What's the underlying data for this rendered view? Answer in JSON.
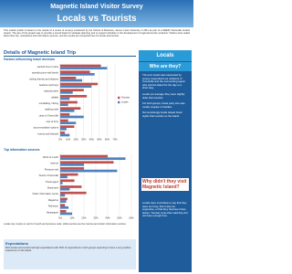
{
  "header": {
    "title": "Magnetic Island Visitor Survey",
    "subtitle": "Locals vs Tourists"
  },
  "intro": "This market profile is based on the results of a series of surveys conducted by the School of Business, James Cook University in 2011 as part of a DEEDI Townsville funded project. The aim of the project was to provide a sound basis for strategic planning and to support activities in the development of regional tourism products. Visitors were asked about their trip, motivations and information sources, and the results are compared here for locals and tourists.",
  "section": "Details of Magnetic Island Trip",
  "charts": [
    {
      "type": "bar",
      "orientation": "horizontal",
      "title": "Factors influencing travel decision",
      "categories": [
        "wanted time to relax",
        "spending time with family",
        "visiting friends and relatives",
        "beaches and bays",
        "national parks",
        "wildlife",
        "snorkelling / diving",
        "walking trails",
        "close to Townsville",
        "cost of ferry",
        "accommodation options",
        "events and festivals"
      ],
      "series": [
        {
          "name": "Tourists",
          "color": "#c0504d",
          "values": [
            52,
            38,
            20,
            48,
            30,
            34,
            22,
            26,
            12,
            10,
            18,
            6
          ]
        },
        {
          "name": "Locals",
          "color": "#4f81bd",
          "values": [
            60,
            44,
            28,
            40,
            16,
            12,
            10,
            18,
            30,
            20,
            8,
            12
          ]
        }
      ],
      "xlim": [
        0,
        70
      ],
      "xticks": [
        {
          "value": 0,
          "label": "0%"
        },
        {
          "value": 10,
          "label": "10%"
        },
        {
          "value": 20,
          "label": "20%"
        },
        {
          "value": 30,
          "label": "30%"
        },
        {
          "value": 40,
          "label": "40%"
        },
        {
          "value": 50,
          "label": "50%"
        },
        {
          "value": 60,
          "label": "60%"
        },
        {
          "value": 70,
          "label": "70%"
        }
      ],
      "grid": true,
      "legend": "right"
    },
    {
      "type": "bar",
      "orientation": "horizontal",
      "title": "Top information sources",
      "categories": [
        "Word of mouth",
        "Internet",
        "Previous visit",
        "Tourism Townsville",
        "Travel agent",
        "Brochures",
        "Visitor information centre",
        "Magazine",
        "Television",
        "Newspaper"
      ],
      "series": [
        {
          "name": "Tourists",
          "color": "#c0504d",
          "values": [
            40,
            45,
            20,
            15,
            12,
            18,
            22,
            6,
            4,
            5
          ]
        },
        {
          "name": "Locals",
          "color": "#4f81bd",
          "values": [
            55,
            20,
            48,
            6,
            2,
            8,
            4,
            5,
            7,
            10
          ]
        }
      ],
      "xlim": [
        0,
        60
      ],
      "xticks": [
        {
          "value": 0,
          "label": "0%"
        },
        {
          "value": 10,
          "label": "10%"
        },
        {
          "value": 20,
          "label": "20%"
        },
        {
          "value": 30,
          "label": "30%"
        },
        {
          "value": 40,
          "label": "40%"
        },
        {
          "value": 50,
          "label": "50%"
        },
        {
          "value": 60,
          "label": "60%"
        }
      ],
      "grid": true
    }
  ],
  "notes": "Locals rely mostly on word of mouth and previous visits, while tourists use the internet and visitor information centres.",
  "expectations": {
    "title": "Expectations",
    "text": "Both locals and tourists had high expectations with 90% of respondents in both groups expecting to have a very positive experience on the island."
  },
  "sidebar": {
    "title": "Locals",
    "subtitle": "Who are they?",
    "paragraphs": [
      "The term locals was interpreted by survey respondents as residents of Townsville and the surrounding region who visit the island for the day or a short stay.",
      "Locals (on average 40+) were slightly older than tourists.",
      "For both groups, travel party size was mostly couples or families.",
      "Not surprisingly locals stayed fewer nights than tourists on the island."
    ],
    "question": "Why didn't they visit Magnetic Island?",
    "answer": "Locals were most likely to say that they were too busy, that it was too expensive, or that they had been there before. Tourists most often said they did not have enough time."
  }
}
